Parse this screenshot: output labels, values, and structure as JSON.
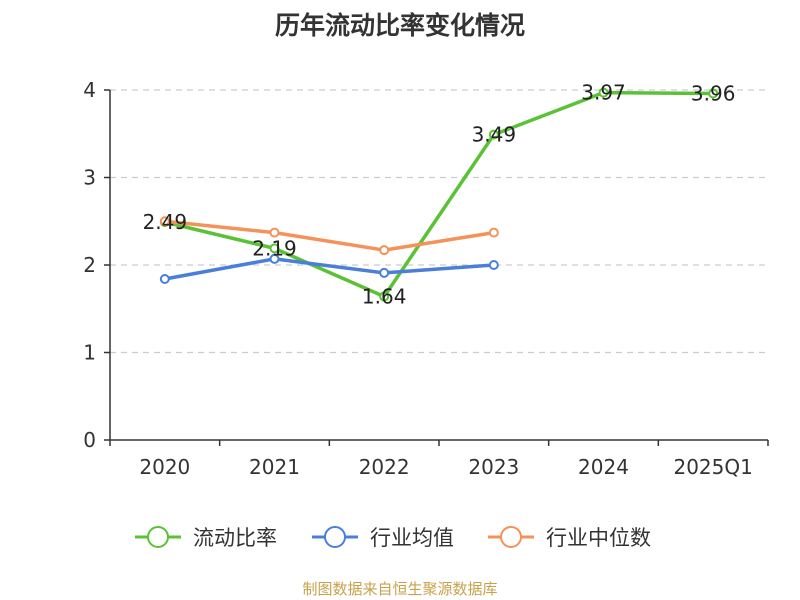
{
  "chart_data": {
    "type": "line",
    "title": "历年流动比率变化情况",
    "categories": [
      "2020",
      "2021",
      "2022",
      "2023",
      "2024",
      "2025Q1"
    ],
    "ylim": [
      0,
      4
    ],
    "yticks": [
      "0",
      "1",
      "2",
      "3",
      "4"
    ],
    "grid": true,
    "legend_position": "bottom",
    "series": [
      {
        "name": "流动比率",
        "color": "#5bc236",
        "values": [
          2.49,
          2.19,
          1.64,
          3.49,
          3.97,
          3.96
        ],
        "labels": [
          "2.49",
          "2.19",
          "1.64",
          "3.49",
          "3.97",
          "3.96"
        ],
        "show_labels": true
      },
      {
        "name": "行业均值",
        "color": "#4a7fd9",
        "values": [
          1.84,
          2.07,
          1.91,
          2.0,
          null,
          null
        ],
        "show_labels": false
      },
      {
        "name": "行业中位数",
        "color": "#f4925a",
        "values": [
          2.5,
          2.37,
          2.17,
          2.37,
          null,
          null
        ],
        "show_labels": false
      }
    ]
  },
  "footer": "制图数据来自恒生聚源数据库"
}
